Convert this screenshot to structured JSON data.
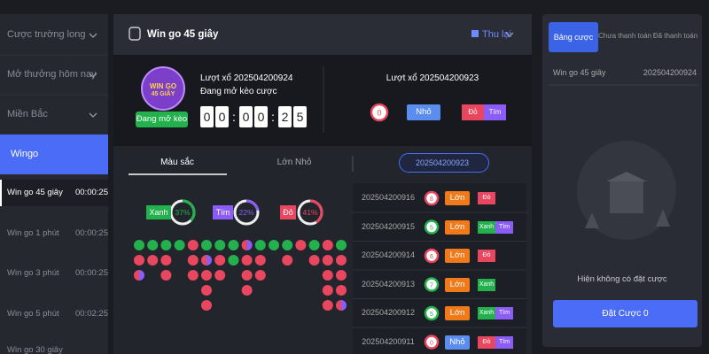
{
  "sidebar": {
    "items": [
      "Cược trường long",
      "Mở thưởng hôm nay",
      "Miền Bắc"
    ],
    "active": "Wingo",
    "games": [
      {
        "name": "Win go 45 giây",
        "time": "00:00:25"
      },
      {
        "name": "Win go 1 phút",
        "time": "00:00:25"
      },
      {
        "name": "Win go 3 phút",
        "time": "00:00:25"
      },
      {
        "name": "Win go 5 phút",
        "time": "00:02:25"
      },
      {
        "name": "Win go 30 giây"
      }
    ]
  },
  "header": {
    "title": "Win go 45 giây",
    "back": "Thu lại"
  },
  "current": {
    "logo_line1": "WIN GO",
    "logo_line2": "45 GIÂY",
    "status": "Đang mở kèo",
    "round": "Lượt xổ 202504200924",
    "subtitle": "Đang mở kèo cược",
    "countdown": [
      "0",
      "0",
      ":",
      "0",
      "0",
      ":",
      "2",
      "5"
    ]
  },
  "previous": {
    "round": "Lượt xổ 202504200923",
    "number": 0,
    "ball_color": "#e8475f",
    "size": "Nhỏ",
    "size_color": "#5b8def",
    "colors": [
      {
        "label": "Đỏ",
        "color": "#e8475f"
      },
      {
        "label": "Tím",
        "color": "#8b5cf6"
      }
    ]
  },
  "tabs": [
    "Màu sắc",
    "Lớn Nhỏ"
  ],
  "period_select": "202504200923",
  "stats": [
    {
      "name": "Xanh",
      "value": 37,
      "label": "37%",
      "color": "#22b14c"
    },
    {
      "name": "Tím",
      "value": 22,
      "label": "22%",
      "color": "#8b5cf6"
    },
    {
      "name": "Đỏ",
      "value": 41,
      "label": "41%",
      "color": "#e8475f"
    }
  ],
  "history": [
    {
      "period": "202504200916",
      "number": 8,
      "ball_color": "#e8475f",
      "size": "Lớn",
      "size_color": "#f07a1a",
      "colors": [
        {
          "label": "Đỏ",
          "color": "#e8475f"
        }
      ]
    },
    {
      "period": "202504200915",
      "number": 5,
      "ball_color": "#22b14c",
      "size": "Lớn",
      "size_color": "#f07a1a",
      "colors": [
        {
          "label": "Xanh",
          "color": "#22b14c"
        },
        {
          "label": "Tím",
          "color": "#8b5cf6"
        }
      ]
    },
    {
      "period": "202504200914",
      "number": 6,
      "ball_color": "#e8475f",
      "size": "Lớn",
      "size_color": "#f07a1a",
      "colors": [
        {
          "label": "Đỏ",
          "color": "#e8475f"
        }
      ]
    },
    {
      "period": "202504200913",
      "number": 7,
      "ball_color": "#22b14c",
      "size": "Lớn",
      "size_color": "#f07a1a",
      "colors": [
        {
          "label": "Xanh",
          "color": "#22b14c"
        }
      ]
    },
    {
      "period": "202504200912",
      "number": 5,
      "ball_color": "#22b14c",
      "size": "Lớn",
      "size_color": "#f07a1a",
      "colors": [
        {
          "label": "Xanh",
          "color": "#22b14c"
        },
        {
          "label": "Tím",
          "color": "#8b5cf6"
        }
      ]
    },
    {
      "period": "202504200911",
      "number": 0,
      "ball_color": "#e8475f",
      "size": "Nhỏ",
      "size_color": "#5b8def",
      "colors": [
        {
          "label": "Đỏ",
          "color": "#e8475f"
        },
        {
          "label": "Tím",
          "color": "#8b5cf6"
        }
      ]
    }
  ],
  "bet_panel": {
    "tabs": [
      "Bảng cược",
      "Chưa thanh toán",
      "Đã thanh toán"
    ],
    "game": "Win go 45 giây",
    "period": "202504200924",
    "empty": "Hiện không có đặt cược",
    "button": "Đặt Cược 0"
  }
}
